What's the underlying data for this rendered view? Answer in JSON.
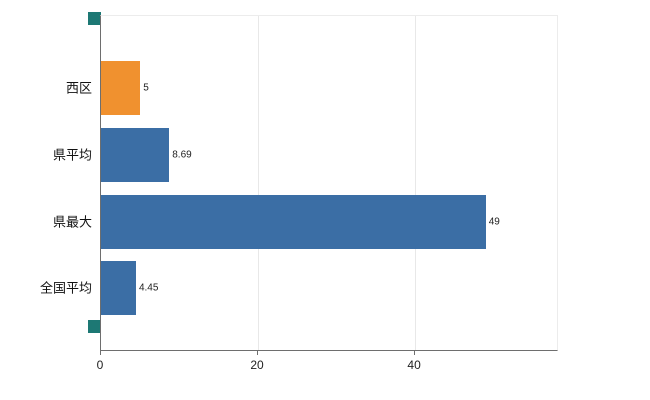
{
  "chart_data": {
    "type": "bar",
    "orientation": "horizontal",
    "title": "",
    "xlabel": "",
    "ylabel": "",
    "legend": "none",
    "grid": "vertical-light",
    "categories": [
      "西区",
      "県平均",
      "県最大",
      "全国平均"
    ],
    "values": [
      5,
      8.69,
      49,
      4.45
    ],
    "value_labels": [
      "5",
      "8.69",
      "49",
      "4.45"
    ],
    "bar_colors": [
      "#f0912f",
      "#3b6ea5",
      "#3b6ea5",
      "#3b6ea5"
    ],
    "xticks": [
      0,
      20,
      40
    ],
    "xlim": [
      0,
      58.2
    ],
    "accent_colors": {
      "orange_bar": "#f0912f",
      "blue_bar": "#3b6ea5",
      "axis_handle": "#1d7874",
      "gridline": "#e8e8e8",
      "axis_line": "#6e6e6e"
    }
  }
}
